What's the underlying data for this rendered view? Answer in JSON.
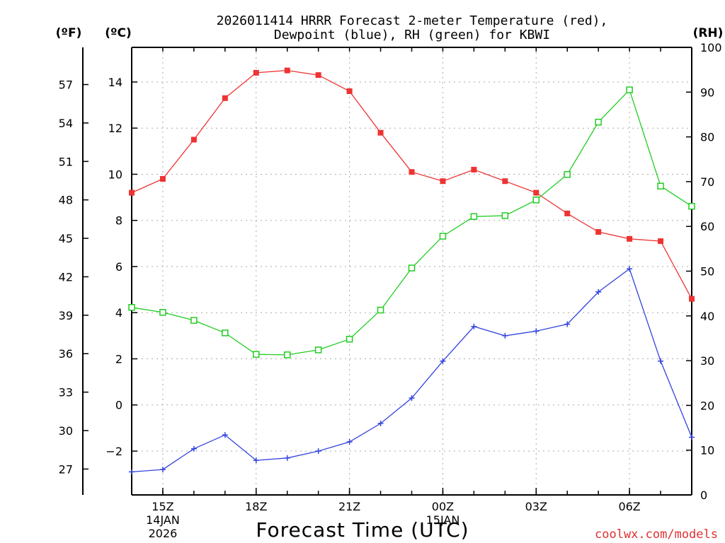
{
  "chart_data": {
    "type": "line",
    "title": "2026011414 HRRR Forecast 2-meter Temperature (red),",
    "subtitle": "Dewpoint (blue), RH (green) for KBWI",
    "xlabel": "Forecast Time (UTC)",
    "credit": "coolwx.com/models",
    "units": {
      "fahrenheit": "(ºF)",
      "celsius": "(ºC)",
      "rh": "(RH)"
    },
    "x_hours": [
      14,
      15,
      16,
      17,
      18,
      19,
      20,
      21,
      22,
      23,
      24,
      25,
      26,
      27,
      28,
      29,
      30,
      31,
      32
    ],
    "x_ticks": [
      {
        "hour": 15,
        "lines": [
          "15Z",
          "14JAN",
          "2026"
        ]
      },
      {
        "hour": 18,
        "lines": [
          "18Z"
        ]
      },
      {
        "hour": 21,
        "lines": [
          "21Z"
        ]
      },
      {
        "hour": 24,
        "lines": [
          "00Z",
          "15JAN"
        ]
      },
      {
        "hour": 27,
        "lines": [
          "03Z"
        ]
      },
      {
        "hour": 30,
        "lines": [
          "06Z"
        ]
      }
    ],
    "xlim": [
      14,
      32
    ],
    "celsius_axis": {
      "ylim": [
        -3.9,
        15.5
      ],
      "ticks": [
        -2,
        0,
        2,
        4,
        6,
        8,
        10,
        12,
        14
      ]
    },
    "fahrenheit_axis": {
      "ticks": [
        27,
        30,
        33,
        36,
        39,
        42,
        45,
        48,
        51,
        54,
        57
      ]
    },
    "rh_axis": {
      "ylim": [
        0,
        100
      ],
      "ticks": [
        0,
        10,
        20,
        30,
        40,
        50,
        60,
        70,
        80,
        90,
        100
      ]
    },
    "series": [
      {
        "name": "Temperature",
        "axis": "celsius",
        "color": "#ee3333",
        "marker": "filled-square",
        "values": [
          9.2,
          9.8,
          11.5,
          13.3,
          14.4,
          14.5,
          14.3,
          13.6,
          11.8,
          10.1,
          9.7,
          10.2,
          9.7,
          9.2,
          8.3,
          7.5,
          7.2,
          7.1,
          4.6
        ]
      },
      {
        "name": "Dewpoint",
        "axis": "celsius",
        "color": "#3344dd",
        "marker": "plus",
        "values": [
          -2.9,
          -2.8,
          -1.9,
          -1.3,
          -2.4,
          -2.3,
          -2.0,
          -1.6,
          -0.8,
          0.3,
          1.9,
          3.4,
          3.0,
          3.2,
          3.5,
          4.9,
          5.9,
          1.9,
          -1.4
        ]
      },
      {
        "name": "RH",
        "axis": "rh",
        "color": "#22cc22",
        "marker": "open-square",
        "values": [
          41.9,
          40.8,
          39.0,
          36.2,
          31.4,
          31.3,
          32.4,
          34.8,
          41.3,
          50.7,
          57.8,
          62.2,
          62.4,
          65.9,
          71.6,
          83.3,
          90.5,
          69.0,
          64.5
        ]
      }
    ]
  }
}
